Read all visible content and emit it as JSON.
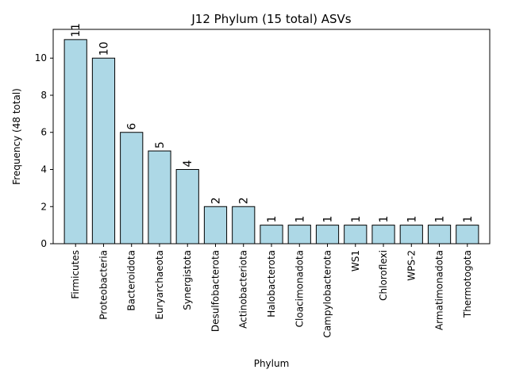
{
  "chart_data": {
    "type": "bar",
    "title": "J12 Phylum (15 total) ASVs",
    "xlabel": "Phylum",
    "ylabel": "Frequency (48 total)",
    "categories": [
      "Firmicutes",
      "Proteobacteria",
      "Bacteroidota",
      "Euryarchaeota",
      "Synergistota",
      "Desulfobacterota",
      "Actinobacteriota",
      "Halobacterota",
      "Cloacimonadota",
      "Campylobacterota",
      "WS1",
      "Chloroflexi",
      "WPS-2",
      "Armatimonadota",
      "Thermotogota"
    ],
    "values": [
      11,
      10,
      6,
      5,
      4,
      2,
      2,
      1,
      1,
      1,
      1,
      1,
      1,
      1,
      1
    ],
    "data_labels": [
      "11",
      "10",
      "6",
      "5",
      "4",
      "2",
      "2",
      "1",
      "1",
      "1",
      "1",
      "1",
      "1",
      "1",
      "1"
    ],
    "yticks": [
      0,
      2,
      4,
      6,
      8,
      10
    ],
    "ytick_labels": [
      "0",
      "2",
      "4",
      "6",
      "8",
      "10"
    ],
    "ylim": [
      0,
      11.55
    ],
    "grid": false,
    "legend": "none",
    "bar_color": "#add8e6",
    "edge_color": "#000000"
  }
}
